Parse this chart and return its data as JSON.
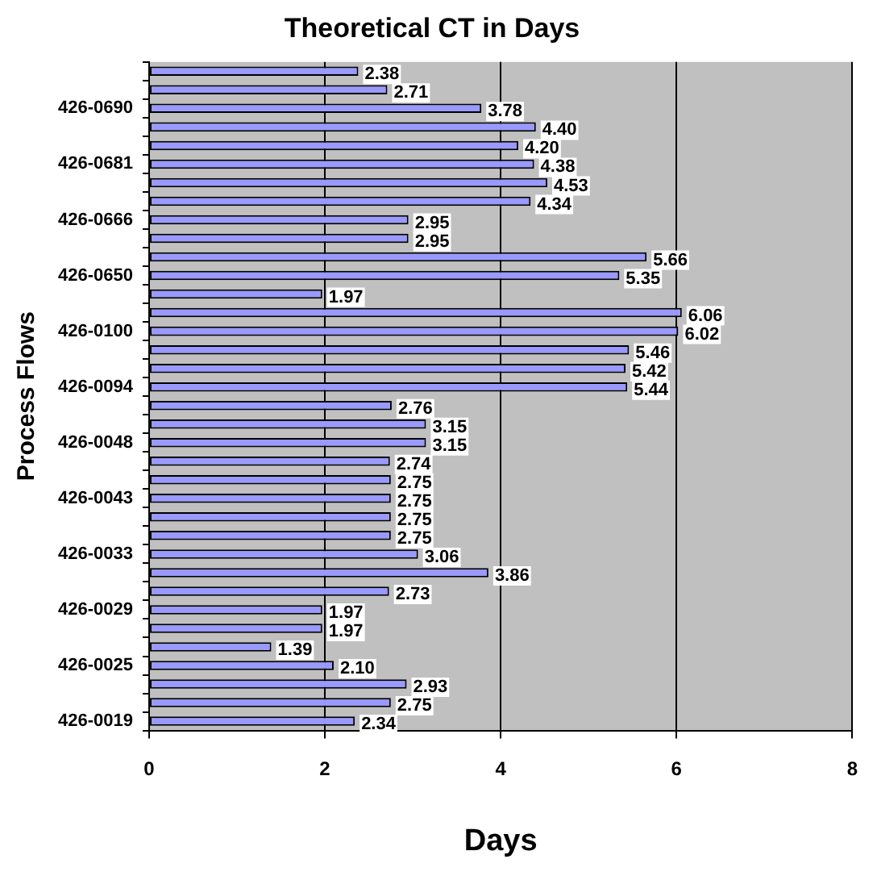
{
  "chart_data": {
    "type": "bar",
    "orientation": "horizontal",
    "title": "Theoretical CT in Days",
    "xlabel": "Days",
    "ylabel": "Process Flows",
    "categories": [
      null,
      null,
      "426-0690",
      null,
      null,
      "426-0681",
      null,
      null,
      "426-0666",
      null,
      null,
      "426-0650",
      null,
      null,
      "426-0100",
      null,
      null,
      "426-0094",
      null,
      null,
      "426-0048",
      null,
      null,
      "426-0043",
      null,
      null,
      "426-0033",
      null,
      null,
      "426-0029",
      null,
      null,
      "426-0025",
      null,
      null,
      "426-0019"
    ],
    "values": [
      2.38,
      2.71,
      3.78,
      4.4,
      4.2,
      4.38,
      4.53,
      4.34,
      2.95,
      2.95,
      5.66,
      5.35,
      1.97,
      6.06,
      6.02,
      5.46,
      5.42,
      5.44,
      2.76,
      3.15,
      3.15,
      2.74,
      2.75,
      2.75,
      2.75,
      2.75,
      3.06,
      3.86,
      2.73,
      1.97,
      1.97,
      1.39,
      2.1,
      2.93,
      2.75,
      2.34
    ],
    "color": "#9999ff",
    "value_labels": [
      "2.38",
      "2.71",
      "3.78",
      "4.40",
      "4.20",
      "4.38",
      "4.53",
      "4.34",
      "2.95",
      "2.95",
      "5.66",
      "5.35",
      "1.97",
      "6.06",
      "6.02",
      "5.46",
      "5.42",
      "5.44",
      "2.76",
      "3.15",
      "3.15",
      "2.74",
      "2.75",
      "2.75",
      "2.75",
      "2.75",
      "3.06",
      "3.86",
      "2.73",
      "1.97",
      "1.97",
      "1.39",
      "2.10",
      "2.93",
      "2.75",
      "2.34"
    ],
    "xlim": [
      0,
      8
    ],
    "xticks": [
      0,
      2,
      4,
      6,
      8
    ],
    "grid": "x",
    "legend": false
  }
}
